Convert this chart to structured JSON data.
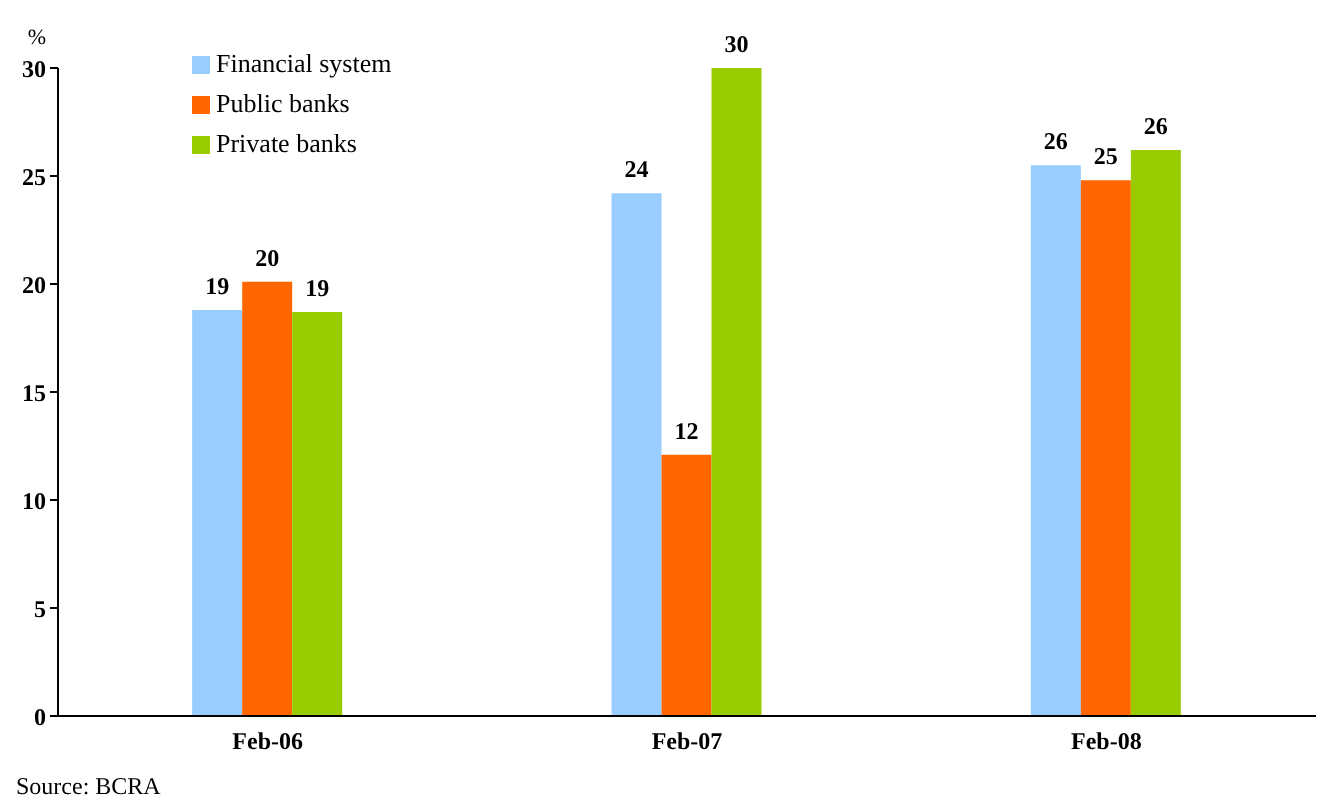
{
  "chart_data": {
    "type": "bar",
    "ylabel": "%",
    "categories": [
      "Feb-06",
      "Feb-07",
      "Feb-08"
    ],
    "series": [
      {
        "name": "Financial system",
        "color": "#99ccff",
        "values": [
          18.8,
          24.2,
          25.5
        ],
        "value_labels": [
          "19",
          "24",
          "26"
        ]
      },
      {
        "name": "Public banks",
        "color": "#ff6600",
        "values": [
          20.1,
          12.1,
          24.8
        ],
        "value_labels": [
          "20",
          "12",
          "25"
        ]
      },
      {
        "name": "Private banks",
        "color": "#99cc00",
        "values": [
          18.7,
          30,
          26.2
        ],
        "value_labels": [
          "19",
          "30",
          "26"
        ]
      }
    ],
    "ylim": [
      0,
      30
    ],
    "yticks": [
      0,
      5,
      10,
      15,
      20,
      25,
      30
    ],
    "grid": false,
    "legend": "top left",
    "annotations": [
      "Source: BCRA"
    ]
  }
}
